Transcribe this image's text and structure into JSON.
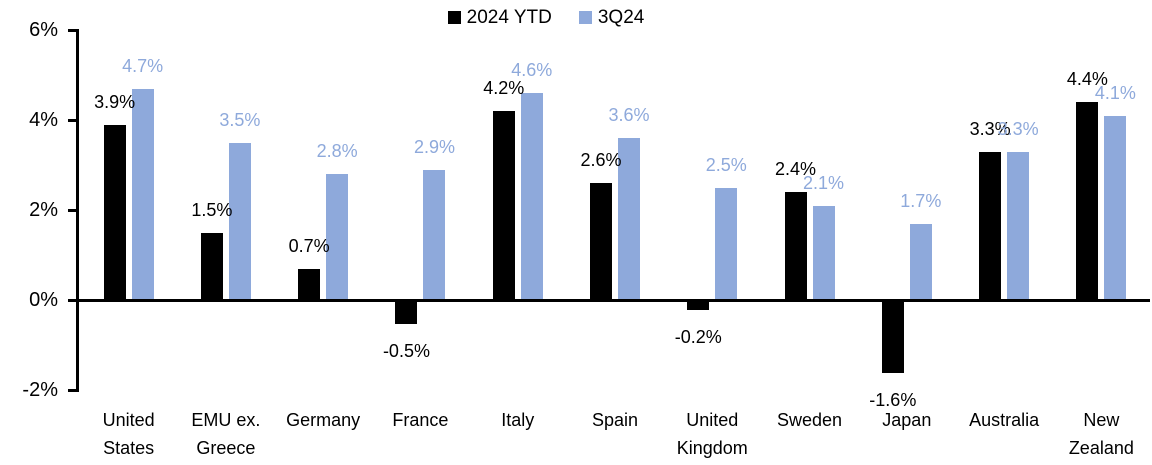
{
  "chart_data": {
    "type": "bar",
    "title": "",
    "categories": [
      [
        "United",
        "States"
      ],
      [
        "EMU ex.",
        "Greece"
      ],
      [
        "Germany"
      ],
      [
        "France"
      ],
      [
        "Italy"
      ],
      [
        "Spain"
      ],
      [
        "United",
        "Kingdom"
      ],
      [
        "Sweden"
      ],
      [
        "Japan"
      ],
      [
        "Australia"
      ],
      [
        "New",
        "Zealand"
      ]
    ],
    "series": [
      {
        "name": "2024 YTD",
        "color": "#000000",
        "values": [
          3.9,
          1.5,
          0.7,
          -0.5,
          4.2,
          2.6,
          -0.2,
          2.4,
          -1.6,
          3.3,
          4.4
        ]
      },
      {
        "name": "3Q24",
        "color": "#8EA9DB",
        "values": [
          4.7,
          3.5,
          2.8,
          2.9,
          4.6,
          3.6,
          2.5,
          2.1,
          1.7,
          3.3,
          4.1
        ]
      }
    ],
    "value_suffix": "%",
    "y_axis": {
      "tick_labels": [
        "6%",
        "4%",
        "2%",
        "0%",
        "-2%"
      ],
      "tick_values": [
        6,
        4,
        2,
        0,
        -2
      ],
      "min": -2,
      "max": 6,
      "step": 2
    },
    "legend_position": "top-center",
    "grid": false,
    "colors": {
      "series_2024_ytd": "#000000",
      "series_3q24": "#8EA9DB",
      "background": "#FFFFFF",
      "axis": "#000000"
    }
  }
}
